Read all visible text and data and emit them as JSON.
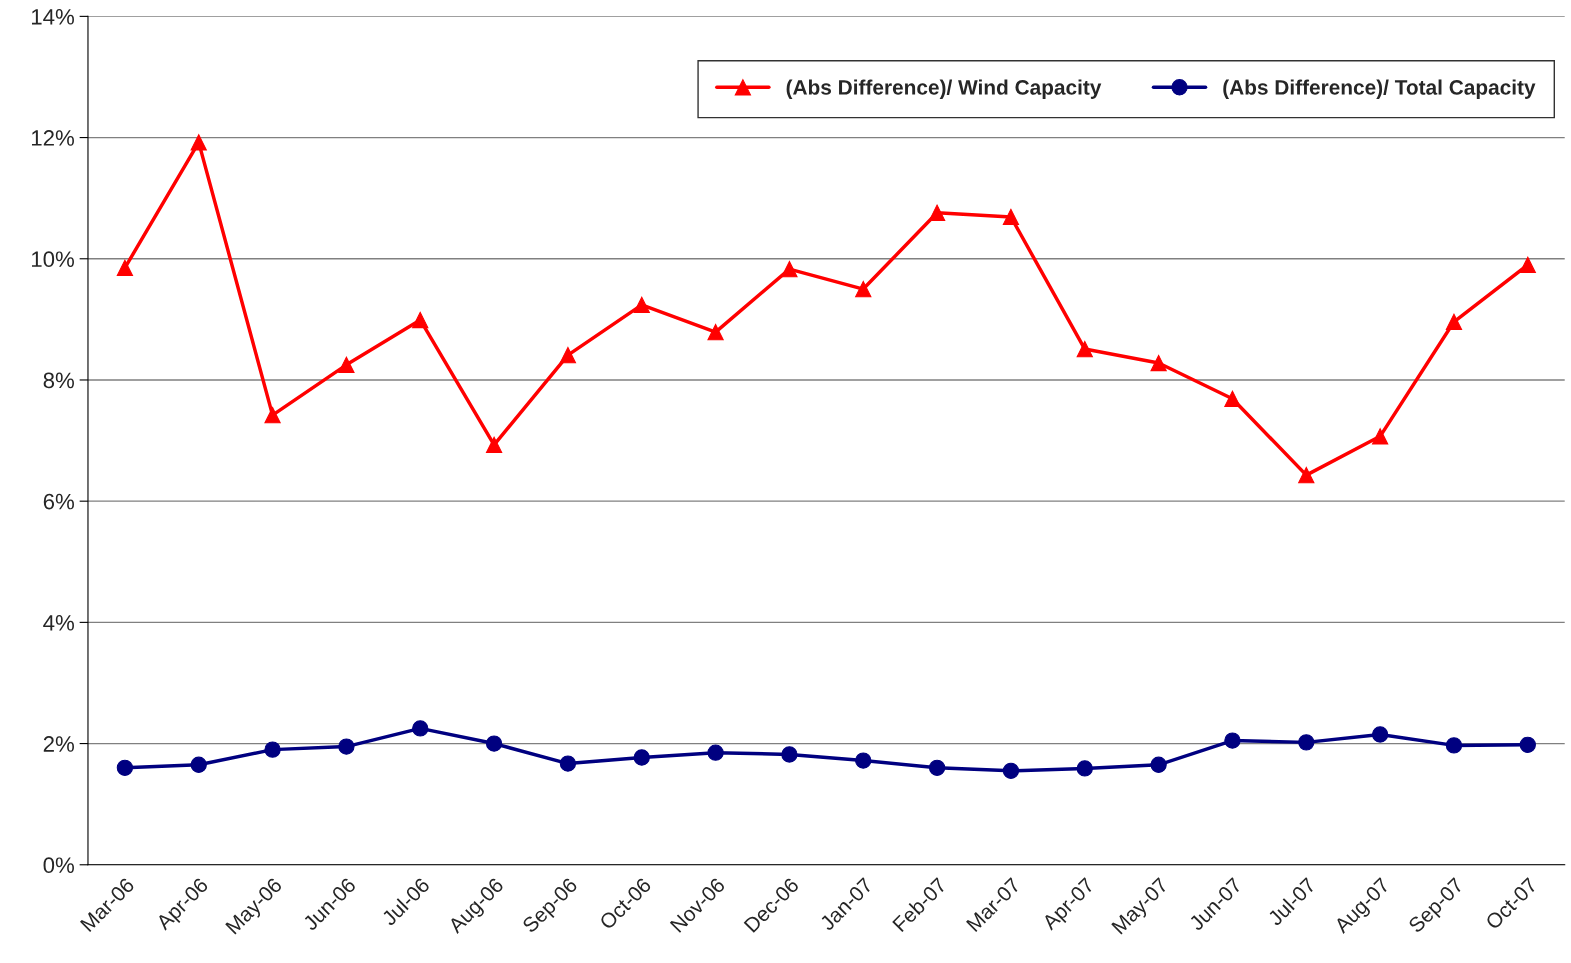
{
  "chart_data": {
    "type": "line",
    "categories": [
      "Mar-06",
      "Apr-06",
      "May-06",
      "Jun-06",
      "Jul-06",
      "Aug-06",
      "Sep-06",
      "Oct-06",
      "Nov-06",
      "Dec-06",
      "Jan-07",
      "Feb-07",
      "Mar-07",
      "Apr-07",
      "May-07",
      "Jun-07",
      "Jul-07",
      "Aug-07",
      "Sep-07",
      "Oct-07"
    ],
    "series": [
      {
        "name": "(Abs Difference)/ Wind Capacity",
        "color": "#ff0000",
        "marker": "triangle",
        "values": [
          9.85,
          11.92,
          7.42,
          8.25,
          8.99,
          6.93,
          8.41,
          9.24,
          8.79,
          9.83,
          9.5,
          10.76,
          10.69,
          8.51,
          8.28,
          7.69,
          6.43,
          7.07,
          8.96,
          9.9
        ]
      },
      {
        "name": "(Abs Difference)/ Total Capacity",
        "color": "#000080",
        "marker": "circle",
        "values": [
          1.6,
          1.65,
          1.9,
          1.95,
          2.25,
          2.0,
          1.67,
          1.77,
          1.85,
          1.82,
          1.72,
          1.6,
          1.55,
          1.59,
          1.65,
          2.05,
          2.02,
          2.15,
          1.97,
          1.98
        ]
      }
    ],
    "ylim": [
      0,
      14
    ],
    "yticks": [
      {
        "value": 0,
        "label": "0%"
      },
      {
        "value": 2,
        "label": "2%"
      },
      {
        "value": 4,
        "label": "4%"
      },
      {
        "value": 6,
        "label": "6%"
      },
      {
        "value": 8,
        "label": "8%"
      },
      {
        "value": 10,
        "label": "10%"
      },
      {
        "value": 12,
        "label": "12%"
      },
      {
        "value": 14,
        "label": "14%"
      }
    ],
    "grid": "y",
    "legend": "top right",
    "line_style": "solid"
  }
}
